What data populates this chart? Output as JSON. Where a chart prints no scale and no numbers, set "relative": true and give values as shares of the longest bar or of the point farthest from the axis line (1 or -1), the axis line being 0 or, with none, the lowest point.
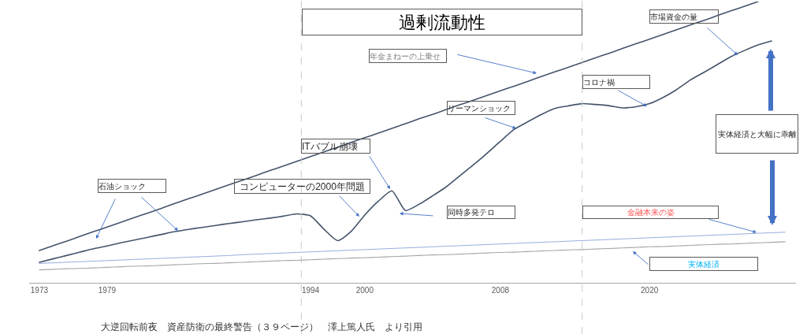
{
  "chart_data": {
    "type": "line",
    "title": "過剰流動性",
    "relative": true,
    "categories": [
      "1973",
      null,
      null,
      null,
      null,
      "1979",
      null,
      null,
      null,
      null,
      null,
      null,
      null,
      null,
      null,
      null,
      null,
      null,
      null,
      null,
      "1994",
      null,
      null,
      null,
      "2000",
      null,
      null,
      null,
      null,
      null,
      null,
      null,
      null,
      null,
      "2008",
      null,
      null,
      null,
      null,
      null,
      null,
      null,
      null,
      null,
      null,
      "2020",
      null,
      null,
      null,
      null,
      null,
      null,
      null,
      null,
      null,
      null
    ],
    "series": [
      {
        "color": "#44546a",
        "values": [
          0.115,
          0.132,
          0.148,
          0.165,
          0.182,
          0.198,
          0.215,
          0.232,
          0.248,
          0.265,
          0.282,
          0.299,
          0.315,
          0.332,
          0.349,
          0.365,
          0.382,
          0.399,
          0.415,
          0.432,
          0.449,
          0.466,
          0.482,
          0.499,
          0.516,
          0.532,
          0.549,
          0.566,
          0.583,
          0.599,
          0.616,
          0.633,
          0.649,
          0.666,
          0.683,
          0.699,
          0.716,
          0.733,
          0.75,
          0.766,
          0.783,
          0.8,
          0.816,
          0.833,
          0.85,
          0.866,
          0.883,
          0.9,
          0.917,
          0.933,
          0.95,
          0.967,
          0.983,
          1.0,
          null,
          null
        ]
      },
      {
        "color": "#44546a",
        "values": [
          0.073,
          0.085,
          0.097,
          0.109,
          0.121,
          0.131,
          0.142,
          0.152,
          0.162,
          0.172,
          0.182,
          0.19,
          0.197,
          0.204,
          0.211,
          0.217,
          0.224,
          0.23,
          0.237,
          0.245,
          0.238,
          0.19,
          0.15,
          0.183,
          0.241,
          0.29,
          0.327,
          0.257,
          0.279,
          0.309,
          0.341,
          0.38,
          0.419,
          0.46,
          0.503,
          0.545,
          0.572,
          0.598,
          0.62,
          0.629,
          0.637,
          0.634,
          0.63,
          0.622,
          0.626,
          0.637,
          0.659,
          0.687,
          0.721,
          0.748,
          0.776,
          0.804,
          0.826,
          0.846,
          0.86,
          null
        ]
      },
      {
        "color": "#8faadc",
        "values": [
          0.069,
          0.071,
          0.073,
          0.075,
          0.077,
          0.079,
          0.081,
          0.083,
          0.085,
          0.087,
          0.089,
          0.091,
          0.093,
          0.095,
          0.097,
          0.1,
          0.102,
          0.104,
          0.106,
          0.108,
          0.11,
          0.112,
          0.114,
          0.116,
          0.118,
          0.12,
          0.122,
          0.124,
          0.126,
          0.128,
          0.13,
          0.132,
          0.134,
          0.136,
          0.138,
          0.14,
          0.142,
          0.144,
          0.146,
          0.148,
          0.15,
          0.152,
          0.154,
          0.156,
          0.158,
          0.16,
          0.162,
          0.164,
          0.166,
          0.168,
          0.17,
          0.172,
          0.174,
          0.176,
          0.178,
          0.18
        ]
      },
      {
        "color": "#a6a6a6",
        "values": [
          0.046,
          0.048,
          0.05,
          0.051,
          0.053,
          0.055,
          0.057,
          0.059,
          0.06,
          0.062,
          0.064,
          0.066,
          0.068,
          0.069,
          0.071,
          0.073,
          0.075,
          0.077,
          0.079,
          0.08,
          0.082,
          0.084,
          0.086,
          0.088,
          0.089,
          0.091,
          0.093,
          0.095,
          0.097,
          0.099,
          0.1,
          0.102,
          0.104,
          0.106,
          0.108,
          0.109,
          0.111,
          0.113,
          0.115,
          0.117,
          0.118,
          0.12,
          0.122,
          0.124,
          0.126,
          0.128,
          0.129,
          0.131,
          0.133,
          0.135,
          0.137,
          0.138,
          0.14,
          0.142,
          0.144,
          0.146
        ]
      }
    ],
    "annotations": [
      "年金まねーの上乗せ",
      "市場資金の量",
      "コロナ禍",
      "リーマンショック",
      "ITバブル崩壊",
      "石油ショック",
      "コンピューターの2000年問題",
      "同時多発テロ",
      "金融本来の姿",
      "実体経済",
      "実体経済と大幅に乖離",
      "大逆回転前夜　資産防衛の最終警告（３９ページ）　澤上篤人氏　より引用"
    ]
  }
}
